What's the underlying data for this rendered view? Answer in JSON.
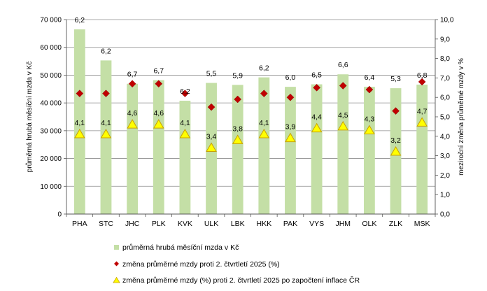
{
  "chart_data": {
    "type": "bar",
    "categories": [
      "PHA",
      "STC",
      "JHC",
      "PLK",
      "KVK",
      "ULK",
      "LBK",
      "HKK",
      "PAK",
      "VYS",
      "JHM",
      "OLK",
      "ZLK",
      "MSK"
    ],
    "series": [
      {
        "name": "průměrná hrubá měsíční mzda v Kč",
        "kind": "bar",
        "axis": "left",
        "color": "#c4dfa6",
        "values": [
          66500,
          55300,
          46900,
          48200,
          40800,
          47200,
          46500,
          49200,
          45800,
          46700,
          50300,
          45800,
          45300,
          46600
        ]
      },
      {
        "name": "změna průměrné mzdy proti 2. čtvrtletí 2025 (%)",
        "kind": "marker-diamond",
        "axis": "right",
        "color": "#c00000",
        "values": [
          6.2,
          6.2,
          6.7,
          6.7,
          6.2,
          5.5,
          5.9,
          6.2,
          6.0,
          6.5,
          6.6,
          6.4,
          5.3,
          6.8
        ],
        "labels": [
          "6,2",
          "6,2",
          "6,7",
          "6,7",
          "6,2",
          "5,5",
          "5,9",
          "6,2",
          "6,0",
          "6,5",
          "6,6",
          "6,4",
          "5,3",
          "6,8"
        ]
      },
      {
        "name": "změna průměrné mzdy (%) proti 2. čtvrtletí 2025 po započtení inflace ČR",
        "kind": "marker-triangle",
        "axis": "right",
        "color": "#ffff00",
        "stroke": "#c8a000",
        "values": [
          4.1,
          4.1,
          4.6,
          4.6,
          4.1,
          3.4,
          3.8,
          4.1,
          3.9,
          4.4,
          4.5,
          4.3,
          3.2,
          4.7
        ],
        "labels": [
          "4,1",
          "4,1",
          "4,6",
          "4,6",
          "4,1",
          "3,4",
          "3,8",
          "4,1",
          "3,9",
          "4,4",
          "4,5",
          "4,3",
          "3,2",
          "4,7"
        ]
      }
    ],
    "ylabel": "průměrná hrubá měsíční mzda v Kč",
    "y2label": "meziroční změna průměrné mzdy v %",
    "ylim": [
      0,
      70000
    ],
    "y2lim": [
      0,
      10
    ],
    "yticks": [
      "0",
      "10 000",
      "20 000",
      "30 000",
      "40 000",
      "50 000",
      "60 000",
      "70 000"
    ],
    "y2ticks": [
      "0,0",
      "1,0",
      "2,0",
      "3,0",
      "4,0",
      "5,0",
      "6,0",
      "7,0",
      "8,0",
      "9,0",
      "10,0"
    ],
    "grid": true,
    "legend_position": "bottom-left"
  }
}
